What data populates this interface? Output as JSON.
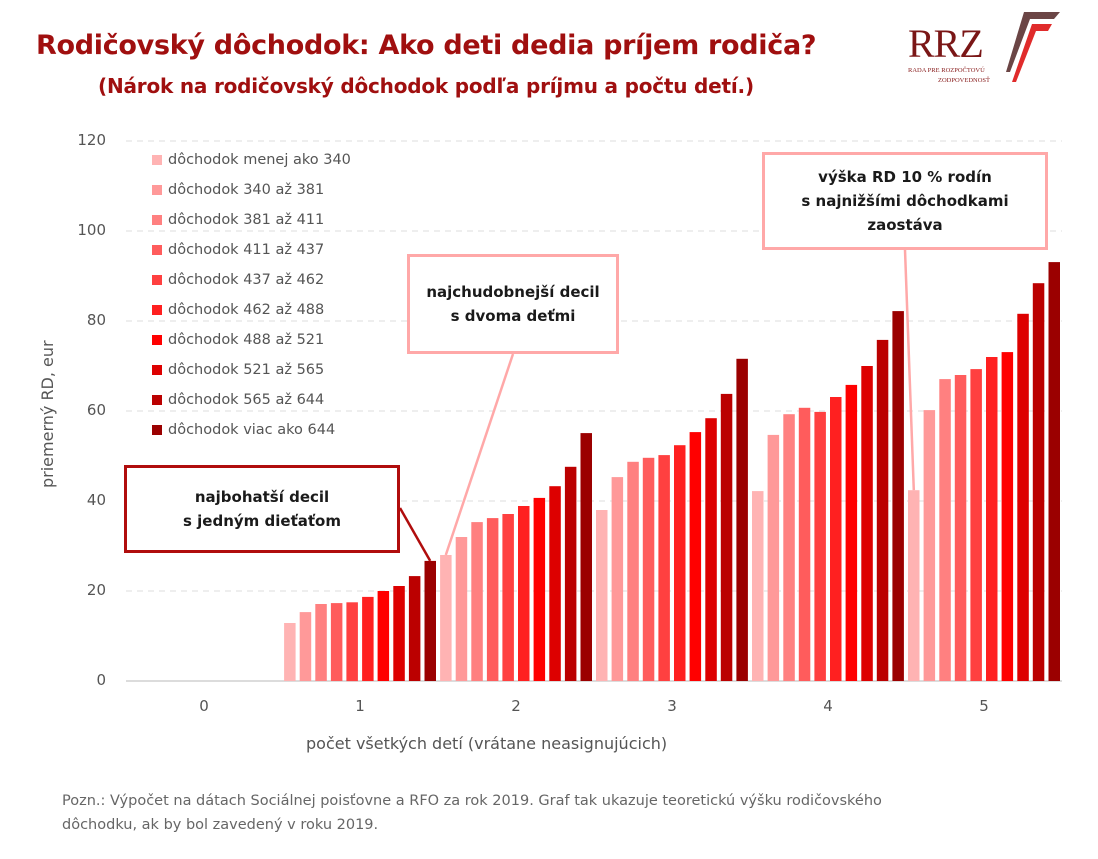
{
  "header": {
    "title": "Rodičovský dôchodok: Ako deti dedia príjem rodiča?",
    "subtitle": "(Nárok na rodičovský dôchodok podľa príjmu a počtu detí.)"
  },
  "logo": {
    "text": "RRZ",
    "line1": "RADA PRE ROZPOČTOVÚ",
    "line2": "ZODPOVEDNOSŤ"
  },
  "colors": {
    "title": "#a00f0f",
    "series": [
      "#ffb3b3",
      "#ff9999",
      "#ff8080",
      "#ff5c5c",
      "#ff4040",
      "#ff2020",
      "#ff0000",
      "#dd0000",
      "#bb0000",
      "#9b0000"
    ]
  },
  "chart_data": {
    "type": "bar",
    "title": "Rodičovský dôchodok: Ako deti dedia príjem rodiča?",
    "subtitle": "(Nárok na rodičovský dôchodok podľa príjmu a počtu detí.)",
    "xlabel": "počet všetkých detí (vrátane neasignujúcich)",
    "ylabel": "priemerný RD, eur",
    "ylim": [
      0,
      120
    ],
    "yticks": [
      0,
      20,
      40,
      60,
      80,
      100,
      120
    ],
    "grid": true,
    "legend_position": "upper-left",
    "categories": [
      "0",
      "1",
      "2",
      "3",
      "4",
      "5"
    ],
    "series": [
      {
        "name": "dôchodok menej ako 340",
        "values": [
          0,
          12.9,
          28.0,
          38.0,
          42.2,
          42.4
        ]
      },
      {
        "name": "dôchodok 340  až 381",
        "values": [
          0,
          15.3,
          32.0,
          45.3,
          54.7,
          60.2
        ]
      },
      {
        "name": "dôchodok 381  až 411",
        "values": [
          0,
          17.1,
          35.3,
          48.7,
          59.3,
          67.1
        ]
      },
      {
        "name": "dôchodok 411  až 437",
        "values": [
          0,
          17.3,
          36.2,
          49.6,
          60.7,
          68.0
        ]
      },
      {
        "name": "dôchodok 437  až 462",
        "values": [
          0,
          17.5,
          37.1,
          50.2,
          59.8,
          69.3
        ]
      },
      {
        "name": "dôchodok 462  až 488",
        "values": [
          0,
          18.7,
          38.9,
          52.4,
          63.1,
          72.0
        ]
      },
      {
        "name": "dôchodok 488  až 521",
        "values": [
          0,
          20.0,
          40.7,
          55.3,
          65.8,
          73.1
        ]
      },
      {
        "name": "dôchodok 521  až 565",
        "values": [
          0,
          21.1,
          43.3,
          58.4,
          70.0,
          81.6
        ]
      },
      {
        "name": "dôchodok 565  až 644",
        "values": [
          0,
          23.3,
          47.6,
          63.8,
          75.8,
          88.4
        ]
      },
      {
        "name": "dôchodok viac ako 644",
        "values": [
          0,
          26.7,
          55.1,
          71.6,
          82.2,
          93.1
        ]
      }
    ],
    "annotations": [
      {
        "text_lines": [
          "najbohatší decil",
          "s jedným dieťaťom"
        ],
        "points_to": {
          "category": "1",
          "series": 9
        }
      },
      {
        "text_lines": [
          "najchudobnejší decil",
          "s dvoma deťmi"
        ],
        "points_to": {
          "category": "2",
          "series": 0
        }
      },
      {
        "text_lines": [
          "výška RD 10 % rodín",
          "s najnižšími dôchodkami",
          "zaostáva"
        ],
        "points_to": {
          "category": "5",
          "series": 0
        }
      }
    ]
  },
  "callouts": {
    "richest": {
      "line1": "najbohatší decil",
      "line2": "s jedným dieťaťom"
    },
    "poorest": {
      "line1": "najchudobnejší decil",
      "line2": "s dvoma deťmi"
    },
    "lowest": {
      "line1": "výška RD 10 % rodín",
      "line2": "s najnižšími dôchodkami",
      "line3": "zaostáva"
    }
  },
  "footer": {
    "note_line1": "Pozn.: Výpočet na dátach Sociálnej poisťovne a RFO za rok 2019. Graf tak ukazuje teoretickú výšku rodičovského",
    "note_line2": "dôchodku, ak by bol zavedený v roku 2019."
  }
}
